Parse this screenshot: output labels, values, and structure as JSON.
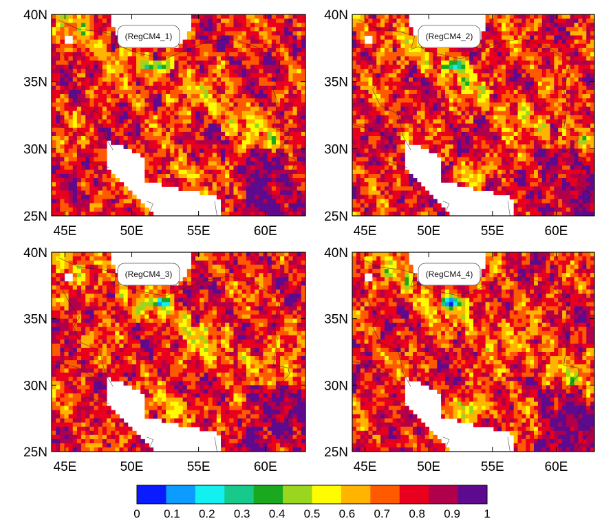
{
  "panels": [
    {
      "id": "p1",
      "label": "(RegCM4_1)",
      "lat_labels": [
        "40N",
        "35N",
        "30N",
        "25N"
      ],
      "lon_labels": [
        "45E",
        "50E",
        "55E",
        "60E"
      ],
      "lat_side": "left",
      "seed": 11
    },
    {
      "id": "p2",
      "label": "(RegCM4_2)",
      "lat_labels": [
        "40N",
        "35N",
        "30N",
        "25N"
      ],
      "lon_labels": [
        "45E",
        "50E",
        "55E",
        "60E"
      ],
      "lat_side": "left",
      "seed": 23
    },
    {
      "id": "p3",
      "label": "(RegCM4_3)",
      "lat_labels": [
        "40N",
        "35N",
        "30N",
        "25N"
      ],
      "lon_labels": [
        "45E",
        "50E",
        "55E",
        "60E"
      ],
      "lat_side": "left",
      "seed": 37
    },
    {
      "id": "p4",
      "label": "(RegCM4_4)",
      "lat_labels": [
        "40N",
        "35N",
        "30N",
        "25N"
      ],
      "lon_labels": [
        "45E",
        "50E",
        "55E",
        "60E"
      ],
      "lat_side": "left",
      "seed": 53
    }
  ],
  "map_extent": {
    "lon_min": 44,
    "lon_max": 63,
    "lat_min": 25,
    "lat_max": 40
  },
  "colorbar": {
    "min": 0,
    "max": 1,
    "tick_labels": [
      "0",
      "0.1",
      "0.2",
      "0.3",
      "0.4",
      "0.5",
      "0.6",
      "0.7",
      "0.8",
      "0.9",
      "1"
    ],
    "colors": [
      "#0a1cff",
      "#0c9cff",
      "#12f0f0",
      "#17c98a",
      "#1aa81e",
      "#9ad61e",
      "#fffb00",
      "#ffb400",
      "#ff5a00",
      "#e8001e",
      "#b0004c",
      "#5d0a8e"
    ]
  }
}
